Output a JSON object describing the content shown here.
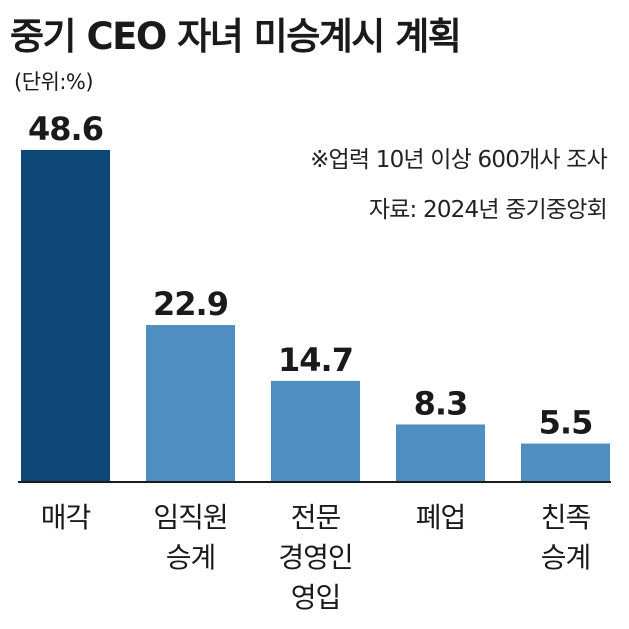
{
  "title": "중기 CEO 자녀 미승계시 계획",
  "unit": "(단위:%)",
  "notes": {
    "survey": "※업력 10년 이상 600개사 조사",
    "source": "자료: 2024년 중기중앙회"
  },
  "chart_data": {
    "type": "bar",
    "categories": [
      [
        "매각"
      ],
      [
        "임직원",
        "승계"
      ],
      [
        "전문",
        "경영인",
        "영입"
      ],
      [
        "폐업"
      ],
      [
        "친족",
        "승계"
      ]
    ],
    "values": [
      48.6,
      22.9,
      14.7,
      8.3,
      5.5
    ],
    "value_labels": [
      "48.6",
      "22.9",
      "14.7",
      "8.3",
      "5.5"
    ],
    "ylim": [
      0,
      48.6
    ],
    "grid": false,
    "legend": "none",
    "colors": {
      "highlight": "#0e4777",
      "bar": "#4f8ec1",
      "axis": "#1a1a1a",
      "text": "#1a1a1a"
    }
  }
}
